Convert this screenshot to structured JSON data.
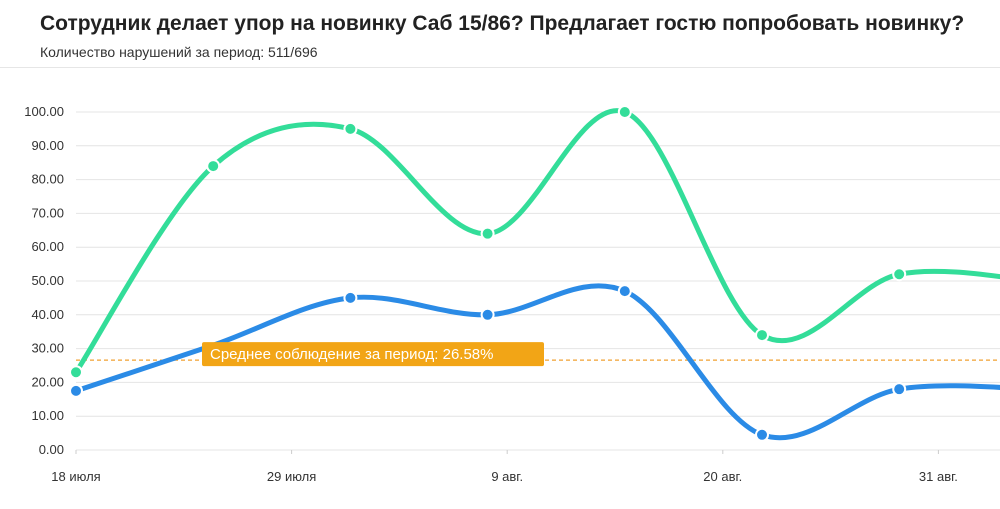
{
  "chart_data": {
    "type": "line",
    "title": "Сотрудник делает упор на новинку Саб 15/86? Предлагает гостю попробовать новинку?",
    "subtitle": "Количество нарушений за период: 511/696",
    "ylim": [
      0,
      100
    ],
    "y_ticks": [
      "0.00",
      "10.00",
      "20.00",
      "30.00",
      "40.00",
      "50.00",
      "60.00",
      "70.00",
      "80.00",
      "90.00",
      "100.00"
    ],
    "x_ticks": [
      {
        "label": "18 июля",
        "day": 0
      },
      {
        "label": "29 июля",
        "day": 11
      },
      {
        "label": "9 авг.",
        "day": 22
      },
      {
        "label": "20 авг.",
        "day": 33
      },
      {
        "label": "31 авг.",
        "day": 44
      }
    ],
    "series": [
      {
        "color": "#33dd99",
        "points": [
          [
            0,
            23
          ],
          [
            7,
            84
          ],
          [
            14,
            95
          ],
          [
            21,
            64
          ],
          [
            28,
            100
          ],
          [
            35,
            34
          ],
          [
            42,
            52
          ],
          [
            49,
            50
          ]
        ],
        "markers": [
          0,
          1,
          2,
          3,
          4,
          5,
          6
        ]
      },
      {
        "color": "#2b8be6",
        "points": [
          [
            0,
            17.5
          ],
          [
            7,
            31
          ],
          [
            14,
            45
          ],
          [
            21,
            40
          ],
          [
            28,
            47
          ],
          [
            35,
            4.5
          ],
          [
            42,
            18
          ],
          [
            49,
            18
          ]
        ],
        "markers": [
          0,
          2,
          3,
          4,
          5,
          6
        ]
      }
    ],
    "average": {
      "value": 26.58,
      "label": "Среднее соблюдение за период: 26.58%",
      "line_color": "#f0a030",
      "badge_color": "#f2a516"
    }
  }
}
